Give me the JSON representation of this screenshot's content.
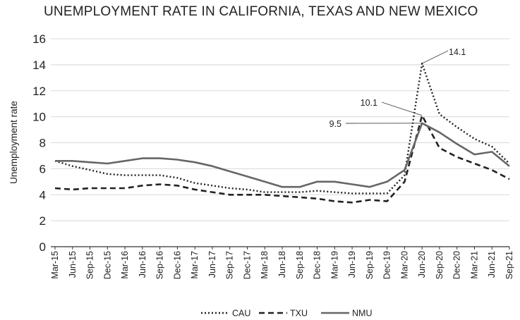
{
  "chart_data": {
    "type": "line",
    "title": "UNEMPLOYMENT RATE IN CALIFORNIA, TEXAS AND NEW MEXICO",
    "xlabel": "",
    "ylabel": "Unemployment rate",
    "ylim": [
      0,
      16
    ],
    "yticks": [
      0,
      2,
      4,
      6,
      8,
      10,
      12,
      14,
      16
    ],
    "grid": true,
    "legend_position": "bottom-center",
    "categories": [
      "Mar-15",
      "Jun-15",
      "Sep-15",
      "Dec-15",
      "Mar-16",
      "Jun-16",
      "Sep-16",
      "Dec-16",
      "Mar-17",
      "Jun-17",
      "Sep-17",
      "Dec-17",
      "Mar-18",
      "Jun-18",
      "Sep-18",
      "Dec-18",
      "Mar-19",
      "Jun-19",
      "Sep-19",
      "Dec-19",
      "Mar-20",
      "Jun-20",
      "Sep-20",
      "Dec-20",
      "Mar-21",
      "Jun-21",
      "Sep-21"
    ],
    "series": [
      {
        "name": "CAU",
        "style": "dotted",
        "color": "#222222",
        "values": [
          6.6,
          6.2,
          5.9,
          5.6,
          5.5,
          5.5,
          5.5,
          5.3,
          4.9,
          4.7,
          4.5,
          4.4,
          4.2,
          4.2,
          4.2,
          4.3,
          4.2,
          4.1,
          4.1,
          4.1,
          5.5,
          14.1,
          10.2,
          9.2,
          8.3,
          7.7,
          6.4
        ]
      },
      {
        "name": "TXU",
        "style": "dashed",
        "color": "#222222",
        "values": [
          4.5,
          4.4,
          4.5,
          4.5,
          4.5,
          4.7,
          4.8,
          4.7,
          4.4,
          4.2,
          4.0,
          4.0,
          4.0,
          3.9,
          3.8,
          3.7,
          3.5,
          3.4,
          3.6,
          3.5,
          5.0,
          10.1,
          7.6,
          6.9,
          6.4,
          5.9,
          5.2
        ]
      },
      {
        "name": "NMU",
        "style": "solid",
        "color": "#666666",
        "values": [
          6.6,
          6.6,
          6.5,
          6.4,
          6.6,
          6.8,
          6.8,
          6.7,
          6.5,
          6.2,
          5.8,
          5.4,
          5.0,
          4.6,
          4.6,
          5.0,
          5.0,
          4.8,
          4.6,
          5.0,
          5.9,
          9.5,
          8.8,
          7.9,
          7.1,
          7.3,
          6.2
        ]
      }
    ],
    "annotations": [
      {
        "text": "14.1",
        "series": "CAU",
        "index": 21
      },
      {
        "text": "10.1",
        "series": "TXU",
        "index": 21
      },
      {
        "text": "9.5",
        "series": "NMU",
        "index": 21
      }
    ]
  }
}
